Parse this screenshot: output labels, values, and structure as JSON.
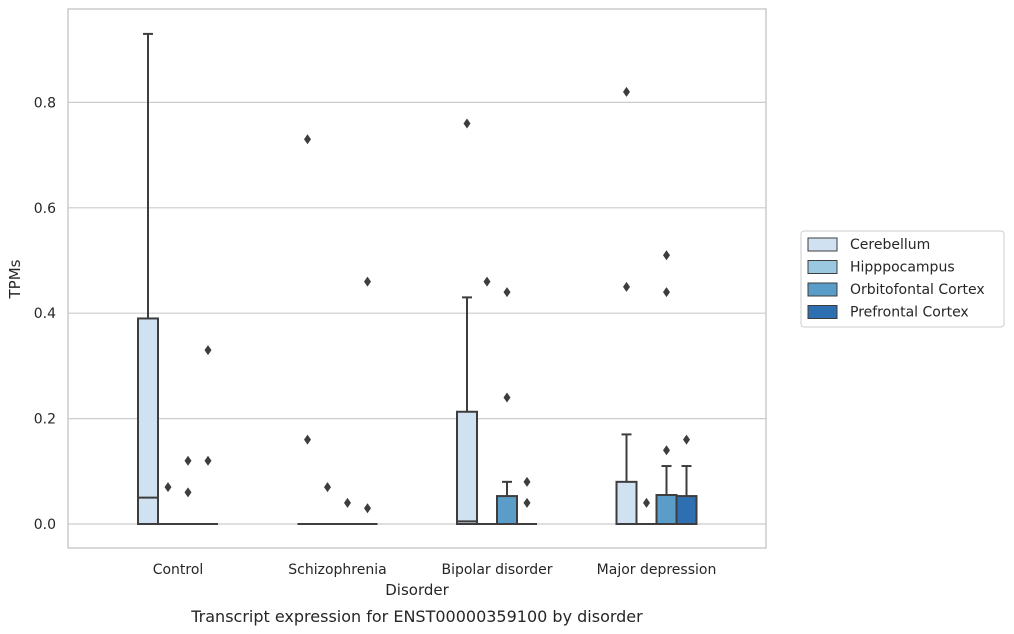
{
  "chart_data": {
    "type": "box",
    "caption": "Transcript expression for ENST00000359100 by disorder",
    "xlabel": "Disorder",
    "ylabel": "TPMs",
    "ylim": [
      -0.045,
      0.98
    ],
    "yticks": [
      0.0,
      0.2,
      0.4,
      0.6,
      0.8
    ],
    "ytick_labels": [
      "0.0",
      "0.2",
      "0.4",
      "0.6",
      "0.8"
    ],
    "grid": "horizontal",
    "legend_position": "right",
    "categories": [
      "Control",
      "Schizophrenia",
      "Bipolar disorder",
      "Major depression"
    ],
    "series": [
      {
        "name": "Cerebellum",
        "color": "#d0e1f2",
        "boxes": [
          {
            "q1": 0.0,
            "median": 0.05,
            "q3": 0.39,
            "whisker_low": 0.0,
            "whisker_high": 0.93,
            "outliers": []
          },
          {
            "q1": 0.0,
            "median": 0.0,
            "q3": 0.0,
            "whisker_low": 0.0,
            "whisker_high": 0.0,
            "outliers": [
              0.73,
              0.16
            ]
          },
          {
            "q1": 0.0,
            "median": 0.005,
            "q3": 0.213,
            "whisker_low": 0.0,
            "whisker_high": 0.43,
            "outliers": [
              0.76
            ]
          },
          {
            "q1": 0.0,
            "median": 0.0,
            "q3": 0.08,
            "whisker_low": 0.0,
            "whisker_high": 0.17,
            "outliers": [
              0.82,
              0.45
            ]
          }
        ]
      },
      {
        "name": "Hipppocampus",
        "color": "#9ac8e0",
        "boxes": [
          {
            "q1": 0.0,
            "median": 0.0,
            "q3": 0.0,
            "whisker_low": 0.0,
            "whisker_high": 0.0,
            "outliers": [
              0.07
            ]
          },
          {
            "q1": 0.0,
            "median": 0.0,
            "q3": 0.0,
            "whisker_low": 0.0,
            "whisker_high": 0.0,
            "outliers": [
              0.07
            ]
          },
          {
            "q1": 0.0,
            "median": 0.0,
            "q3": 0.0,
            "whisker_low": 0.0,
            "whisker_high": 0.0,
            "outliers": [
              0.46
            ]
          },
          {
            "q1": 0.0,
            "median": 0.0,
            "q3": 0.0,
            "whisker_low": 0.0,
            "whisker_high": 0.0,
            "outliers": [
              0.04
            ]
          }
        ]
      },
      {
        "name": "Orbitofontal Cortex",
        "color": "#5a9dc8",
        "boxes": [
          {
            "q1": 0.0,
            "median": 0.0,
            "q3": 0.0,
            "whisker_low": 0.0,
            "whisker_high": 0.0,
            "outliers": [
              0.12,
              0.06
            ]
          },
          {
            "q1": 0.0,
            "median": 0.0,
            "q3": 0.0,
            "whisker_low": 0.0,
            "whisker_high": 0.0,
            "outliers": [
              0.04
            ]
          },
          {
            "q1": 0.0,
            "median": 0.0,
            "q3": 0.053,
            "whisker_low": 0.0,
            "whisker_high": 0.08,
            "outliers": [
              0.44,
              0.24
            ]
          },
          {
            "q1": 0.0,
            "median": 0.0,
            "q3": 0.055,
            "whisker_low": 0.0,
            "whisker_high": 0.11,
            "outliers": [
              0.51,
              0.44,
              0.14
            ]
          }
        ]
      },
      {
        "name": "Prefrontal Cortex",
        "color": "#2d6fb0",
        "boxes": [
          {
            "q1": 0.0,
            "median": 0.0,
            "q3": 0.0,
            "whisker_low": 0.0,
            "whisker_high": 0.0,
            "outliers": [
              0.33,
              0.12
            ]
          },
          {
            "q1": 0.0,
            "median": 0.0,
            "q3": 0.0,
            "whisker_low": 0.0,
            "whisker_high": 0.0,
            "outliers": [
              0.46,
              0.03
            ]
          },
          {
            "q1": 0.0,
            "median": 0.0,
            "q3": 0.0,
            "whisker_low": 0.0,
            "whisker_high": 0.0,
            "outliers": [
              0.08,
              0.04
            ]
          },
          {
            "q1": 0.0,
            "median": 0.0,
            "q3": 0.053,
            "whisker_low": 0.0,
            "whisker_high": 0.11,
            "outliers": [
              0.16
            ]
          }
        ]
      }
    ]
  }
}
